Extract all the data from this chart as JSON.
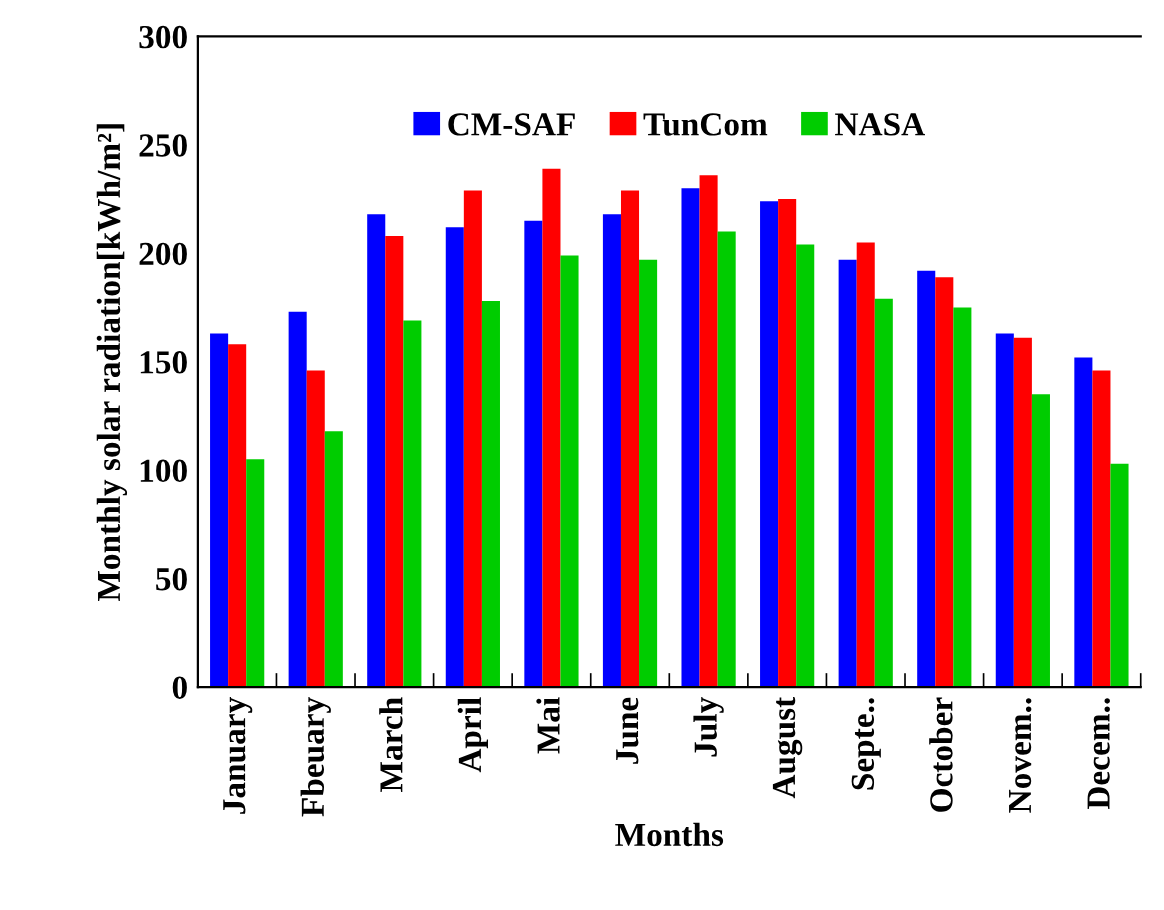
{
  "chart_data": {
    "type": "bar",
    "xlabel": "Months",
    "ylabel": "Monthly solar radiation[kWh/m²]",
    "categories": [
      "January",
      "Fbeuary",
      "March",
      "April",
      "Mai",
      "June",
      "July",
      "August",
      "Septe..",
      "October",
      "Novem..",
      "Decem.."
    ],
    "series": [
      {
        "name": "CM-SAF",
        "color": "#0000ff",
        "values": [
          163,
          173,
          218,
          212,
          215,
          218,
          230,
          224,
          197,
          192,
          163,
          152
        ]
      },
      {
        "name": "TunCom",
        "color": "#ff0000",
        "values": [
          158,
          146,
          208,
          229,
          239,
          229,
          236,
          225,
          205,
          189,
          161,
          146
        ]
      },
      {
        "name": "NASA",
        "color": "#00cc00",
        "values": [
          105,
          118,
          169,
          178,
          199,
          197,
          210,
          204,
          179,
          175,
          135,
          103
        ]
      }
    ],
    "ylim": [
      0,
      300
    ],
    "yticks": [
      0,
      50,
      100,
      150,
      200,
      250,
      300
    ],
    "grid": false,
    "legend": "top"
  }
}
